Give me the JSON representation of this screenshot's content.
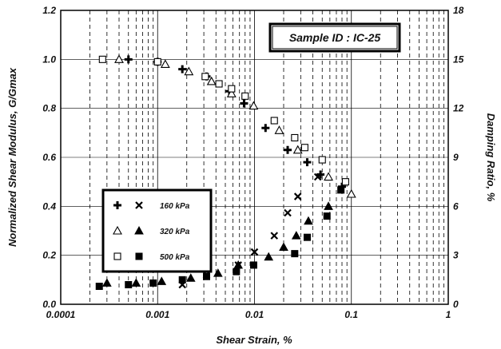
{
  "chart_data": {
    "type": "scatter",
    "annotation": "Sample ID : IC-25",
    "xlabel": "Shear Strain, %",
    "ylabel": "Normalized Shear Modulus, G/Gmax",
    "y2label": "Damping Ratio, %",
    "xscale": "log",
    "xlim": [
      0.0001,
      1
    ],
    "ylim": [
      0,
      1.2
    ],
    "y2lim": [
      0,
      18
    ],
    "xticks": [
      0.0001,
      0.001,
      0.01,
      0.1,
      1
    ],
    "xtick_labels": [
      "0.0001",
      "0.001",
      "0.01",
      "0.1",
      "1"
    ],
    "yticks": [
      0,
      0.2,
      0.4,
      0.6,
      0.8,
      1.0,
      1.2
    ],
    "ytick_labels": [
      "0.0",
      "0.2",
      "0.4",
      "0.6",
      "0.8",
      "1.0",
      "1.2"
    ],
    "y2ticks": [
      0,
      3,
      6,
      9,
      12,
      15,
      18
    ],
    "y2tick_labels": [
      "0",
      "3",
      "6",
      "9",
      "12",
      "15",
      "18"
    ],
    "grid": true,
    "legend_position": "center-left",
    "legend": [
      {
        "label": "160 kPa",
        "modulus_marker": "plus",
        "damping_marker": "cross"
      },
      {
        "label": "320 kPa",
        "modulus_marker": "triangle-open",
        "damping_marker": "triangle-filled"
      },
      {
        "label": "500 kPa",
        "modulus_marker": "square-open",
        "damping_marker": "square-filled"
      }
    ],
    "series": [
      {
        "marker": "plus",
        "axis": "left",
        "x": [
          0.0005,
          0.001,
          0.0018,
          0.0032,
          0.0055,
          0.0078,
          0.013,
          0.022,
          0.035,
          0.048,
          0.08
        ],
        "y": [
          1.0,
          0.99,
          0.96,
          0.93,
          0.87,
          0.82,
          0.72,
          0.63,
          0.58,
          0.53,
          0.48
        ]
      },
      {
        "marker": "cross",
        "axis": "right",
        "x": [
          0.0018,
          0.0032,
          0.0068,
          0.01,
          0.016,
          0.022,
          0.028,
          0.045
        ],
        "y": [
          1.2,
          1.8,
          2.4,
          3.2,
          4.2,
          5.6,
          6.6,
          7.8
        ]
      },
      {
        "marker": "triangle-open",
        "axis": "left",
        "x": [
          0.0004,
          0.0012,
          0.0021,
          0.0036,
          0.0058,
          0.0098,
          0.018,
          0.028,
          0.058,
          0.1
        ],
        "y": [
          1.0,
          0.98,
          0.95,
          0.91,
          0.86,
          0.81,
          0.71,
          0.63,
          0.52,
          0.45
        ]
      },
      {
        "marker": "triangle-filled",
        "axis": "right",
        "x": [
          0.0003,
          0.0006,
          0.0011,
          0.0022,
          0.0042,
          0.0068,
          0.014,
          0.02,
          0.027,
          0.036,
          0.058
        ],
        "y": [
          1.3,
          1.3,
          1.4,
          1.6,
          1.9,
          2.4,
          2.9,
          3.5,
          4.2,
          5.1,
          6.0
        ]
      },
      {
        "marker": "square-open",
        "axis": "left",
        "x": [
          0.00027,
          0.001,
          0.0031,
          0.0043,
          0.0058,
          0.008,
          0.016,
          0.026,
          0.033,
          0.05,
          0.087
        ],
        "y": [
          1.0,
          0.99,
          0.93,
          0.9,
          0.88,
          0.85,
          0.75,
          0.68,
          0.64,
          0.59,
          0.5
        ]
      },
      {
        "marker": "square-filled",
        "axis": "right",
        "x": [
          0.00025,
          0.0005,
          0.0009,
          0.0018,
          0.0032,
          0.0065,
          0.0098,
          0.026,
          0.035,
          0.056,
          0.078
        ],
        "y": [
          1.1,
          1.2,
          1.3,
          1.5,
          1.7,
          2.0,
          2.4,
          3.1,
          4.1,
          5.4,
          7.0
        ]
      }
    ]
  }
}
